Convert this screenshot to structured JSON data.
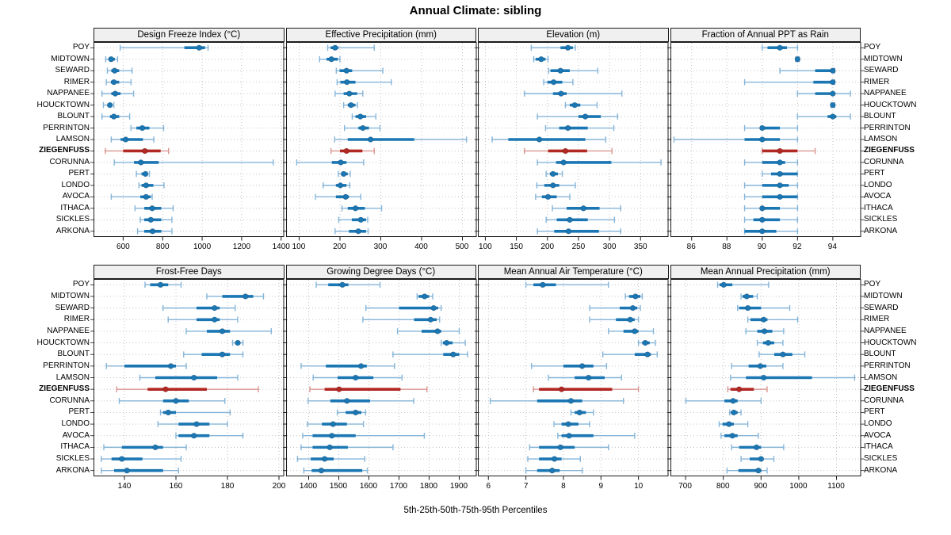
{
  "page_title": "Annual Climate: sibling",
  "caption": "5th-25th-50th-75th-95th Percentiles",
  "percentile_labels": [
    "5th",
    "25th",
    "50th",
    "75th",
    "95th"
  ],
  "sites": [
    "POY",
    "MIDTOWN",
    "SEWARD",
    "RIMER",
    "NAPPANEE",
    "HOUCKTOWN",
    "BLOUNT",
    "PERRINTON",
    "LAMSON",
    "ZIEGENFUSS",
    "CORUNNA",
    "PERT",
    "LONDO",
    "AVOCA",
    "ITHACA",
    "SICKLES",
    "ARKONA"
  ],
  "highlight_site": "ZIEGENFUSS",
  "colors": {
    "series": "#1b77b4",
    "series_light": "#85b5d9",
    "highlight": "#b22823",
    "highlight_light": "#d99590",
    "strip_bg": "#f0f0f0",
    "panel_border": "#1a1a1a",
    "grid": "#bdbdbd",
    "text": "#000000"
  },
  "chart_data": [
    {
      "type": "percentile-interval-dotplot",
      "title": "Design Freeze Index (°C)",
      "grid_row": 0,
      "grid_col": 0,
      "xticks": [
        600,
        800,
        1000,
        1200,
        1400
      ],
      "xlim": [
        450,
        1415
      ],
      "values": [
        [
          585,
          910,
          985,
          1015,
          1030
        ],
        [
          512,
          526,
          539,
          558,
          572
        ],
        [
          520,
          540,
          557,
          580,
          645
        ],
        [
          515,
          538,
          553,
          580,
          640
        ],
        [
          493,
          540,
          560,
          587,
          653
        ],
        [
          500,
          520,
          533,
          543,
          553
        ],
        [
          493,
          533,
          553,
          580,
          633
        ],
        [
          640,
          667,
          697,
          733,
          805
        ],
        [
          540,
          587,
          613,
          700,
          755
        ],
        [
          510,
          600,
          710,
          790,
          830
        ],
        [
          555,
          655,
          690,
          780,
          1360
        ],
        [
          667,
          693,
          713,
          725,
          733
        ],
        [
          680,
          693,
          716,
          753,
          807
        ],
        [
          540,
          687,
          716,
          740,
          747
        ],
        [
          660,
          707,
          747,
          793,
          853
        ],
        [
          687,
          707,
          740,
          793,
          847
        ],
        [
          673,
          707,
          749,
          793,
          847
        ]
      ]
    },
    {
      "type": "percentile-interval-dotplot",
      "title": "Effective Precipitation (mm)",
      "grid_row": 0,
      "grid_col": 1,
      "xticks": [
        100,
        200,
        300,
        400,
        500
      ],
      "xlim": [
        68,
        535
      ],
      "values": [
        [
          170,
          177,
          188,
          196,
          284
        ],
        [
          150,
          167,
          179,
          195,
          200
        ],
        [
          191,
          199,
          216,
          230,
          305
        ],
        [
          193,
          201,
          217,
          238,
          326
        ],
        [
          188,
          209,
          223,
          242,
          256
        ],
        [
          209,
          219,
          227,
          238,
          243
        ],
        [
          230,
          238,
          250,
          264,
          288
        ],
        [
          211,
          245,
          256,
          271,
          298
        ],
        [
          187,
          219,
          275,
          382,
          510
        ],
        [
          178,
          200,
          216,
          255,
          284
        ],
        [
          94,
          180,
          202,
          216,
          258
        ],
        [
          196,
          203,
          209,
          219,
          225
        ],
        [
          159,
          190,
          201,
          216,
          224
        ],
        [
          140,
          190,
          214,
          222,
          251
        ],
        [
          205,
          219,
          238,
          261,
          302
        ],
        [
          197,
          229,
          251,
          264,
          268
        ],
        [
          188,
          222,
          245,
          264,
          269
        ]
      ]
    },
    {
      "type": "percentile-interval-dotplot",
      "title": "Elevation (m)",
      "grid_row": 0,
      "grid_col": 2,
      "xticks": [
        100,
        150,
        200,
        250,
        300,
        350
      ],
      "xlim": [
        88,
        395
      ],
      "values": [
        [
          174,
          221,
          233,
          241,
          245
        ],
        [
          178,
          181,
          190,
          197,
          201
        ],
        [
          202,
          205,
          221,
          236,
          281
        ],
        [
          194,
          200,
          210,
          224,
          241
        ],
        [
          163,
          209,
          222,
          231,
          320
        ],
        [
          229,
          236,
          244,
          253,
          280
        ],
        [
          184,
          250,
          261,
          286,
          313
        ],
        [
          197,
          219,
          233,
          265,
          307
        ],
        [
          111,
          137,
          187,
          261,
          294
        ],
        [
          163,
          201,
          229,
          264,
          304
        ],
        [
          184,
          214,
          226,
          303,
          383
        ],
        [
          198,
          204,
          209,
          217,
          224
        ],
        [
          183,
          195,
          209,
          219,
          245
        ],
        [
          181,
          191,
          201,
          215,
          236
        ],
        [
          208,
          231,
          258,
          284,
          318
        ],
        [
          198,
          215,
          236,
          265,
          308
        ],
        [
          184,
          211,
          234,
          283,
          318
        ]
      ]
    },
    {
      "type": "percentile-interval-dotplot",
      "title": "Fraction of Annual PPT as Rain",
      "grid_row": 0,
      "grid_col": 3,
      "xticks": [
        86,
        88,
        90,
        92,
        94
      ],
      "xlim": [
        84.8,
        95.6
      ],
      "values": [
        [
          90,
          90.3,
          91,
          91.4,
          92
        ],
        [
          91.9,
          92,
          92,
          92,
          92.1
        ],
        [
          91,
          93,
          94,
          94,
          94.1
        ],
        [
          89,
          92.9,
          94,
          94,
          94.1
        ],
        [
          92,
          93,
          94,
          94,
          95
        ],
        [
          93.9,
          94,
          94,
          94,
          94.1
        ],
        [
          92,
          93.7,
          94,
          94.2,
          95
        ],
        [
          89,
          90,
          90,
          91,
          92
        ],
        [
          85,
          89,
          90,
          91,
          92
        ],
        [
          90,
          90,
          91,
          92,
          93
        ],
        [
          89,
          90,
          91,
          91.3,
          92
        ],
        [
          90,
          90.5,
          91,
          92,
          92
        ],
        [
          89,
          90,
          91,
          91.5,
          92
        ],
        [
          89,
          90,
          91,
          92,
          92
        ],
        [
          89,
          90,
          90,
          91,
          92
        ],
        [
          89,
          89.5,
          90,
          91,
          92
        ],
        [
          89,
          89,
          90,
          90.8,
          92
        ]
      ]
    },
    {
      "type": "percentile-interval-dotplot",
      "title": "Frost-Free Days",
      "grid_row": 1,
      "grid_col": 0,
      "xticks": [
        140,
        160,
        180,
        200
      ],
      "xlim": [
        128,
        202
      ],
      "values": [
        [
          148,
          150,
          154,
          157,
          162
        ],
        [
          172,
          178,
          187,
          190,
          194
        ],
        [
          155,
          168,
          175,
          177,
          183
        ],
        [
          157,
          168,
          175,
          177,
          184
        ],
        [
          164,
          172,
          178,
          181,
          197
        ],
        [
          182,
          183,
          184,
          185,
          186
        ],
        [
          163,
          170,
          178,
          181,
          186
        ],
        [
          133,
          140,
          158,
          160,
          164
        ],
        [
          146,
          152,
          167,
          176,
          184
        ],
        [
          137,
          149,
          156,
          172,
          192
        ],
        [
          138,
          155,
          160,
          165,
          179
        ],
        [
          154,
          155,
          157,
          160,
          181
        ],
        [
          153,
          161,
          168,
          173,
          180
        ],
        [
          160,
          161,
          167,
          173,
          186
        ],
        [
          132,
          139,
          152,
          155,
          164
        ],
        [
          131,
          135,
          139,
          147,
          162
        ],
        [
          131,
          136,
          141,
          155,
          161
        ]
      ]
    },
    {
      "type": "percentile-interval-dotplot",
      "title": "Growing Degree Days (°C)",
      "grid_row": 1,
      "grid_col": 1,
      "xticks": [
        1400,
        1500,
        1600,
        1700,
        1800,
        1900
      ],
      "xlim": [
        1325,
        1958
      ],
      "values": [
        [
          1425,
          1465,
          1512,
          1532,
          1637
        ],
        [
          1760,
          1765,
          1785,
          1800,
          1812
        ],
        [
          1590,
          1700,
          1815,
          1830,
          1840
        ],
        [
          1580,
          1750,
          1805,
          1825,
          1835
        ],
        [
          1695,
          1775,
          1828,
          1840,
          1900
        ],
        [
          1840,
          1846,
          1858,
          1878,
          1920
        ],
        [
          1680,
          1847,
          1880,
          1900,
          1928
        ],
        [
          1375,
          1457,
          1574,
          1593,
          1685
        ],
        [
          1415,
          1496,
          1556,
          1615,
          1710
        ],
        [
          1404,
          1453,
          1501,
          1705,
          1793
        ],
        [
          1398,
          1472,
          1527,
          1604,
          1749
        ],
        [
          1495,
          1523,
          1556,
          1575,
          1589
        ],
        [
          1396,
          1444,
          1481,
          1527,
          1582
        ],
        [
          1380,
          1413,
          1477,
          1556,
          1784
        ],
        [
          1375,
          1413,
          1470,
          1530,
          1680
        ],
        [
          1363,
          1407,
          1453,
          1483,
          1586
        ],
        [
          1384,
          1410,
          1442,
          1578,
          1595
        ]
      ]
    },
    {
      "type": "percentile-interval-dotplot",
      "title": "Mean Annual Air Temperature (°C)",
      "grid_row": 1,
      "grid_col": 2,
      "xticks": [
        6,
        7,
        8,
        9,
        10
      ],
      "xlim": [
        5.72,
        10.8
      ],
      "values": [
        [
          7.0,
          7.2,
          7.45,
          7.8,
          9.2
        ],
        [
          9.65,
          9.75,
          9.92,
          10.05,
          10.1
        ],
        [
          8.7,
          9.5,
          9.85,
          9.97,
          10.05
        ],
        [
          8.7,
          9.4,
          9.78,
          9.9,
          10.0
        ],
        [
          9.2,
          9.6,
          9.9,
          10.0,
          10.4
        ],
        [
          10.0,
          10.1,
          10.18,
          10.3,
          10.45
        ],
        [
          9.05,
          9.9,
          10.24,
          10.33,
          10.5
        ],
        [
          7.15,
          8.0,
          8.5,
          8.8,
          9.15
        ],
        [
          7.6,
          8.3,
          8.67,
          9.1,
          9.55
        ],
        [
          7.2,
          7.35,
          7.95,
          9.3,
          10.0
        ],
        [
          6.05,
          7.3,
          8.2,
          8.5,
          9.6
        ],
        [
          8.2,
          8.3,
          8.43,
          8.6,
          8.8
        ],
        [
          7.75,
          7.95,
          8.13,
          8.4,
          8.7
        ],
        [
          7.85,
          7.95,
          8.15,
          8.8,
          9.9
        ],
        [
          7.1,
          7.35,
          7.92,
          8.3,
          9.2
        ],
        [
          7.05,
          7.35,
          7.76,
          7.95,
          8.45
        ],
        [
          7.0,
          7.3,
          7.7,
          7.9,
          8.5
        ]
      ]
    },
    {
      "type": "percentile-interval-dotplot",
      "title": "Mean Annual Precipitation (mm)",
      "grid_row": 1,
      "grid_col": 3,
      "xticks": [
        700,
        800,
        900,
        1000,
        1100
      ],
      "xlim": [
        660,
        1165
      ],
      "values": [
        [
          785,
          790,
          801,
          824,
          920
        ],
        [
          847,
          851,
          862,
          879,
          890
        ],
        [
          838,
          842,
          865,
          900,
          976
        ],
        [
          865,
          872,
          907,
          917,
          997
        ],
        [
          860,
          890,
          909,
          930,
          960
        ],
        [
          890,
          905,
          919,
          935,
          958
        ],
        [
          895,
          935,
          958,
          983,
          1016
        ],
        [
          822,
          867,
          898,
          914,
          958
        ],
        [
          819,
          860,
          907,
          1035,
          1148
        ],
        [
          812,
          819,
          842,
          881,
          916
        ],
        [
          701,
          803,
          826,
          838,
          900
        ],
        [
          817,
          820,
          828,
          838,
          847
        ],
        [
          789,
          798,
          815,
          828,
          865
        ],
        [
          794,
          803,
          824,
          838,
          893
        ],
        [
          822,
          842,
          888,
          900,
          960
        ],
        [
          847,
          870,
          900,
          907,
          934
        ],
        [
          810,
          840,
          893,
          901,
          916
        ]
      ]
    }
  ]
}
